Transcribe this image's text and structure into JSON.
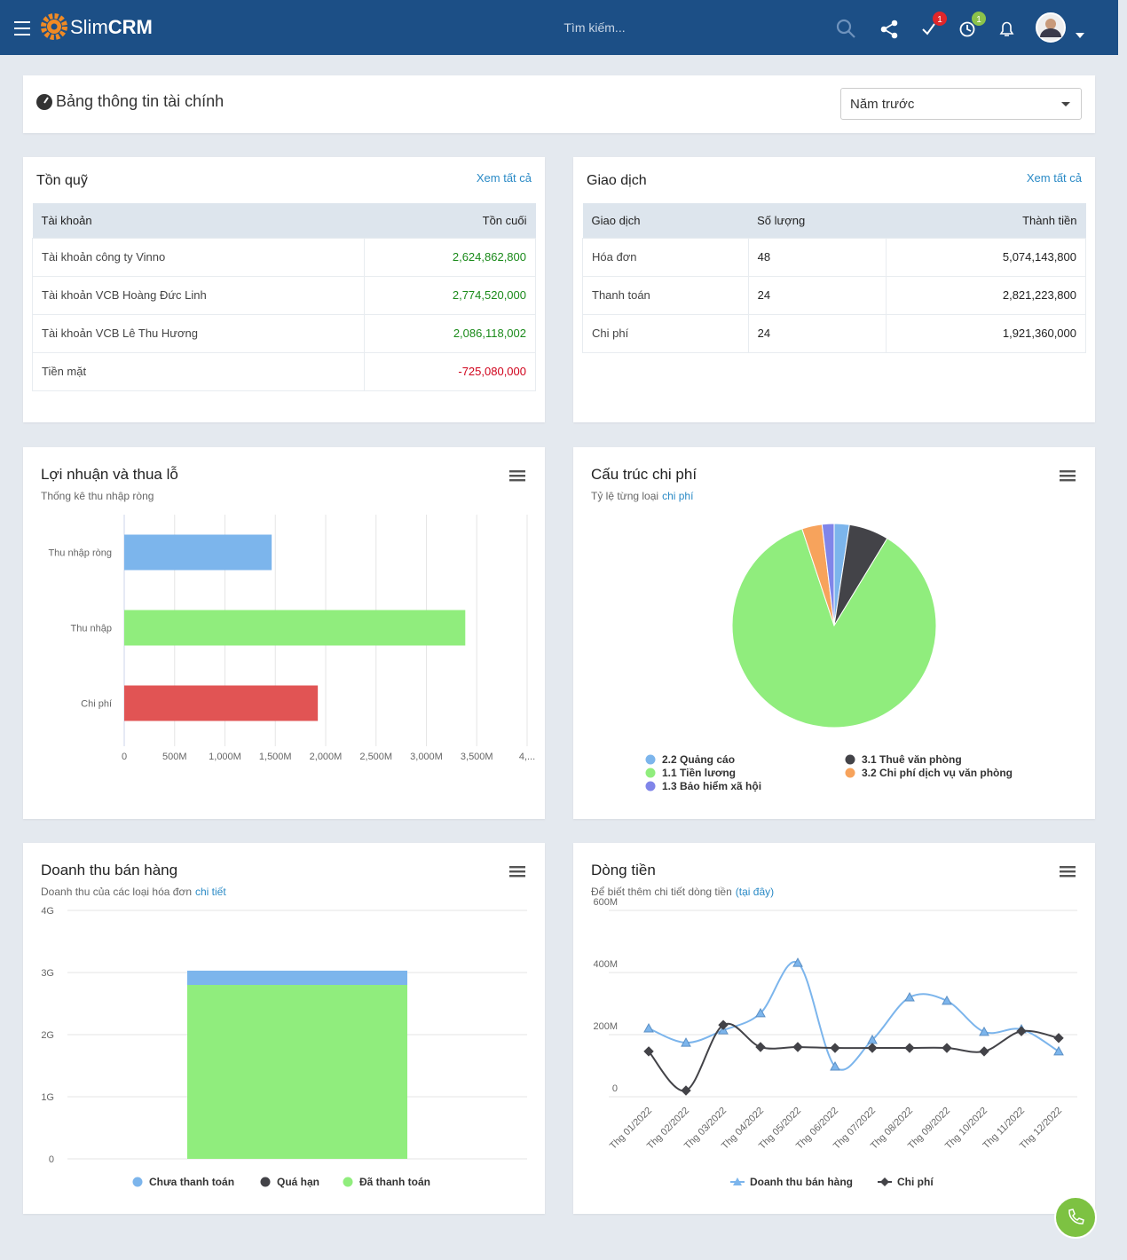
{
  "header": {
    "logo_slim": "Slim",
    "logo_crm": "CRM",
    "search_placeholder": "Tìm kiếm...",
    "tasks_badge": "1",
    "reminders_badge": "1"
  },
  "page_title": "Bảng thông tin tài chính",
  "period_filter": "Năm trước",
  "fund_panel": {
    "title": "Tồn quỹ",
    "link": "Xem tất cả",
    "columns": [
      "Tài khoản",
      "Tồn cuối"
    ],
    "rows": [
      [
        "Tài khoản công ty Vinno",
        "2,624,862,800"
      ],
      [
        "Tài khoản VCB Hoàng Đức Linh",
        "2,774,520,000"
      ],
      [
        "Tài khoản VCB Lê Thu Hương",
        "2,086,118,002"
      ],
      [
        "Tiền mặt",
        "-725,080,000"
      ]
    ]
  },
  "transactions_panel": {
    "title": "Giao dịch",
    "link": "Xem tất cả",
    "columns": [
      "Giao dịch",
      "Số lượng",
      "Thành tiền"
    ],
    "rows": [
      [
        "Hóa đơn",
        "48",
        "5,074,143,800"
      ],
      [
        "Thanh toán",
        "24",
        "2,821,223,800"
      ],
      [
        "Chi phí",
        "24",
        "1,921,360,000"
      ]
    ]
  },
  "chart_data": [
    {
      "type": "hbar",
      "title": "Lợi nhuận và thua lỗ",
      "subtitle": "Thống kê thu nhập ròng",
      "categories": [
        "Thu nhập ròng",
        "Thu nhập",
        "Chi phí"
      ],
      "values": [
        1464000000,
        3386000000,
        1922000000
      ],
      "colors": [
        "#7cb5ec",
        "#90ed7d",
        "#e15454"
      ],
      "xlim": [
        0,
        4000000000
      ],
      "xticks": [
        0,
        {
          "value": 500000000,
          "label": "500M"
        },
        {
          "value": 1000000000,
          "label": "1,000M"
        },
        {
          "value": 1500000000,
          "label": "1,500M"
        },
        {
          "value": 2000000000,
          "label": "2,000M"
        },
        {
          "value": 2500000000,
          "label": "2,500M"
        },
        {
          "value": 3000000000,
          "label": "3,000M"
        },
        {
          "value": 3500000000,
          "label": "3,500M"
        },
        {
          "value": 4000000000,
          "label": "4,..."
        }
      ],
      "grid": true
    },
    {
      "type": "pie",
      "title": "Cấu trúc chi phí",
      "subtitle": "Tỷ lệ từng loại",
      "subtitle_link": "chi phí",
      "categories": [
        "2.2 Quảng cáo",
        "3.1 Thuê văn phòng",
        "1.1 Tiền lương",
        "3.2 Chi phí dịch vụ văn phòng",
        "1.3 Bảo hiểm xã hội"
      ],
      "values": [
        2.4,
        6.3,
        86.2,
        3.2,
        1.9
      ],
      "colors": [
        "#7cb5ec",
        "#434348",
        "#90ed7d",
        "#f7a35c",
        "#8085e9"
      ]
    },
    {
      "type": "stacked-bar",
      "title": "Doanh thu bán hàng",
      "subtitle": "Doanh thu của các loại hóa đơn",
      "subtitle_link": "chi tiết",
      "categories": [
        null
      ],
      "series": [
        {
          "name": "Chưa thanh toán",
          "color": "#7cb5ec",
          "values": [
            230000000
          ]
        },
        {
          "name": "Quá hạn",
          "color": "#434348",
          "values": [
            0
          ]
        },
        {
          "name": "Đã thanh toán",
          "color": "#90ed7d",
          "values": [
            2800000000
          ]
        }
      ],
      "ylim": [
        0,
        4000000000
      ],
      "yticks": [
        0,
        {
          "value": 1000000000,
          "label": "1G"
        },
        {
          "value": 2000000000,
          "label": "2G"
        },
        {
          "value": 3000000000,
          "label": "3G"
        },
        {
          "value": 4000000000,
          "label": "4G"
        }
      ],
      "grid": true
    },
    {
      "type": "line",
      "title": "Dòng tiền",
      "subtitle": "Để biết thêm chi tiết dòng tiền",
      "subtitle_link": "(tại đây)",
      "categories": [
        "Thg 01/2022",
        "Thg 02/2022",
        "Thg 03/2022",
        "Thg 04/2022",
        "Thg 05/2022",
        "Thg 06/2022",
        "Thg 07/2022",
        "Thg 08/2022",
        "Thg 09/2022",
        "Thg 10/2022",
        "Thg 11/2022",
        "Thg 12/2022"
      ],
      "series": [
        {
          "name": "Doanh thu bán hàng",
          "color": "#7cb5ec",
          "marker": "triangle",
          "values": [
            220000000,
            174000000,
            214000000,
            269000000,
            431000000,
            97000000,
            183000000,
            320000000,
            309000000,
            209000000,
            217000000,
            146000000
          ]
        },
        {
          "name": "Chi phí",
          "color": "#434348",
          "marker": "diamond",
          "values": [
            146000000,
            20000000,
            231000000,
            160000000,
            160000000,
            157000000,
            157000000,
            157000000,
            157000000,
            146000000,
            211000000,
            189000000
          ]
        }
      ],
      "ylim": [
        0,
        600000000
      ],
      "yticks": [
        0,
        {
          "value": 200000000,
          "label": "200M"
        },
        {
          "value": 400000000,
          "label": "400M"
        },
        {
          "value": 600000000,
          "label": "600M"
        }
      ],
      "grid": true
    }
  ]
}
